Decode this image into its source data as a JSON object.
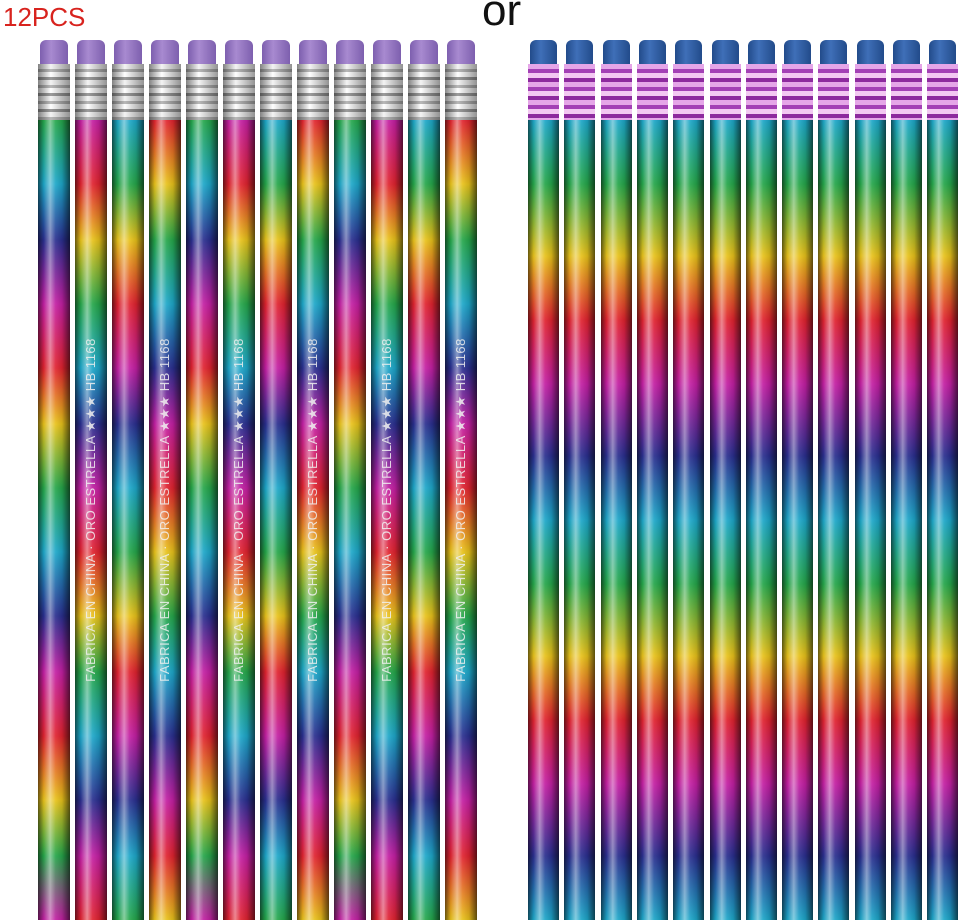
{
  "header": {
    "count_label": "12PCS",
    "or_label": "or"
  },
  "set_a": {
    "eraser_color": "#a88ad0",
    "ferrule_style": "silver",
    "imprint": {
      "brand": "ORO ESTRELLA",
      "grade": "HB 1168",
      "origin": "FABRICA EN CHINA",
      "stars": "★★★"
    }
  },
  "set_b": {
    "eraser_color": "#3f6fb8",
    "ferrule_style": "pink-metallic"
  },
  "colors": {
    "count_label": "#d8231e",
    "rainbow": [
      "#1da7c9",
      "#25a64a",
      "#e8c21a",
      "#e0232f",
      "#c31fa3",
      "#2a2f8f"
    ]
  }
}
